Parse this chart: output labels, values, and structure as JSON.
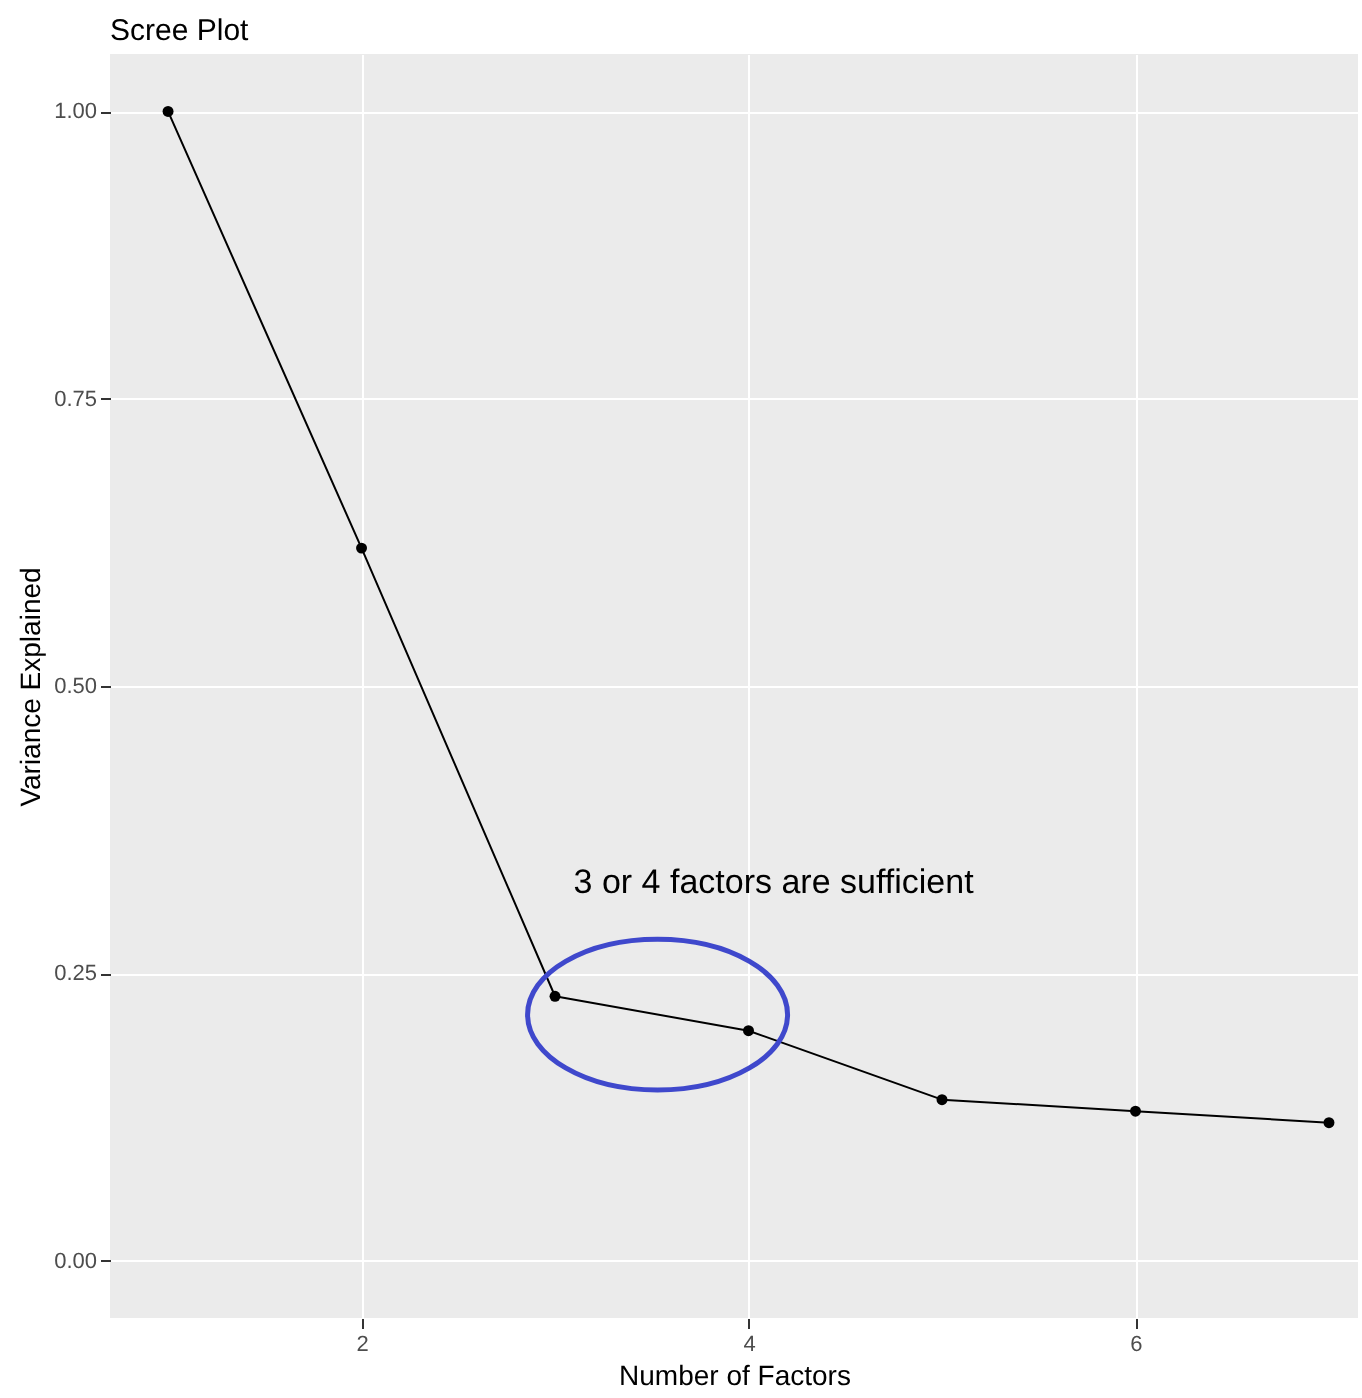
{
  "chart_data": {
    "type": "line",
    "title": "Scree Plot",
    "xlabel": "Number of Factors",
    "ylabel": "Variance Explained",
    "x": [
      1,
      2,
      3,
      4,
      5,
      6,
      7
    ],
    "series": [
      {
        "color": "#000000",
        "values": [
          1.0,
          0.62,
          0.23,
          0.2,
          0.14,
          0.13,
          0.12
        ]
      }
    ],
    "marker": "circle",
    "line_style": "solid",
    "xlim": [
      0.7,
      7.15
    ],
    "xticks": [
      2,
      4,
      6
    ],
    "ylim": [
      -0.05,
      1.05
    ],
    "yticks": [
      {
        "value": 0,
        "label": "0.00"
      },
      {
        "value": 0.25,
        "label": "0.25"
      },
      {
        "value": 0.5,
        "label": "0.50"
      },
      {
        "value": 0.75,
        "label": "0.75"
      },
      {
        "value": 1,
        "label": "1.00"
      }
    ],
    "grid": true,
    "annotations": [
      "3 or 4 factors are sufficient"
    ]
  }
}
